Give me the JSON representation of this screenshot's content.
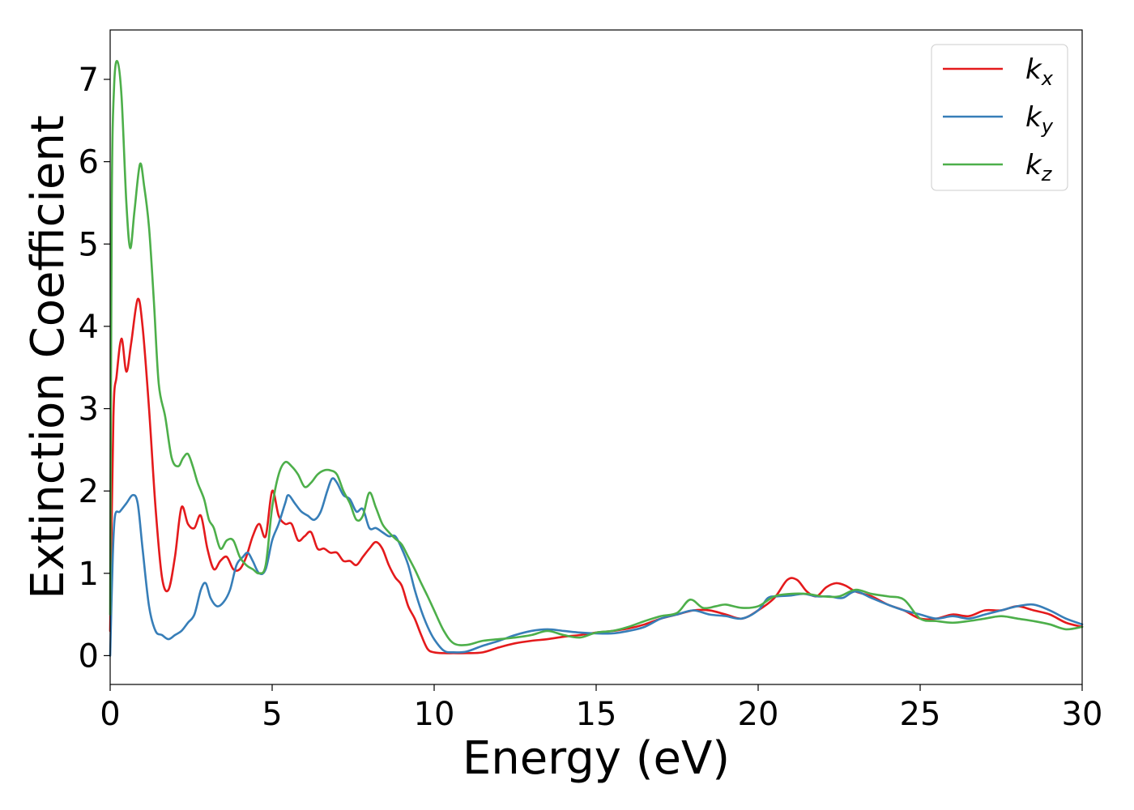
{
  "chart_data": {
    "type": "line",
    "title": "",
    "xlabel": "Energy (eV)",
    "ylabel": "Extinction Coefficient",
    "xlim": [
      0,
      30
    ],
    "ylim": [
      -0.35,
      7.6
    ],
    "xticks": [
      0,
      5,
      10,
      15,
      20,
      25,
      30
    ],
    "yticks": [
      0,
      1,
      2,
      3,
      4,
      5,
      6,
      7
    ],
    "grid": false,
    "legend_position": "top-right",
    "series": [
      {
        "name": "k_x",
        "legend_base": "k",
        "legend_sub": "x",
        "color": "#e41a1c",
        "x": [
          0,
          0.1,
          0.2,
          0.35,
          0.5,
          0.65,
          0.85,
          1.0,
          1.2,
          1.4,
          1.6,
          1.8,
          2.0,
          2.2,
          2.4,
          2.6,
          2.8,
          3.0,
          3.2,
          3.4,
          3.6,
          3.8,
          4.0,
          4.2,
          4.4,
          4.6,
          4.8,
          5.0,
          5.2,
          5.4,
          5.6,
          5.8,
          6.0,
          6.2,
          6.4,
          6.6,
          6.8,
          7.0,
          7.2,
          7.4,
          7.6,
          7.8,
          8.0,
          8.2,
          8.4,
          8.6,
          8.8,
          9.0,
          9.2,
          9.4,
          9.6,
          9.8,
          10.0,
          10.3,
          10.6,
          11.0,
          11.5,
          12.0,
          12.5,
          13.0,
          13.5,
          14.0,
          14.5,
          15.0,
          15.5,
          16.0,
          16.5,
          17.0,
          17.5,
          18.0,
          18.5,
          19.0,
          19.5,
          20.0,
          20.5,
          20.9,
          21.2,
          21.5,
          21.8,
          22.1,
          22.4,
          22.7,
          23.0,
          23.5,
          24.0,
          24.5,
          25.0,
          25.5,
          26.0,
          26.5,
          27.0,
          27.5,
          28.0,
          28.5,
          29.0,
          29.5,
          30.0
        ],
        "values": [
          0.3,
          2.9,
          3.4,
          3.85,
          3.45,
          3.8,
          4.33,
          4.0,
          3.0,
          1.8,
          0.95,
          0.8,
          1.2,
          1.8,
          1.6,
          1.55,
          1.7,
          1.3,
          1.05,
          1.15,
          1.2,
          1.05,
          1.05,
          1.2,
          1.45,
          1.6,
          1.45,
          2.0,
          1.7,
          1.6,
          1.6,
          1.4,
          1.45,
          1.5,
          1.3,
          1.3,
          1.25,
          1.25,
          1.15,
          1.15,
          1.1,
          1.2,
          1.3,
          1.38,
          1.3,
          1.1,
          0.95,
          0.85,
          0.6,
          0.45,
          0.25,
          0.08,
          0.04,
          0.03,
          0.03,
          0.03,
          0.04,
          0.1,
          0.15,
          0.18,
          0.2,
          0.23,
          0.25,
          0.28,
          0.3,
          0.33,
          0.38,
          0.45,
          0.5,
          0.55,
          0.55,
          0.5,
          0.45,
          0.55,
          0.7,
          0.92,
          0.92,
          0.78,
          0.72,
          0.83,
          0.88,
          0.85,
          0.78,
          0.72,
          0.62,
          0.55,
          0.45,
          0.45,
          0.5,
          0.48,
          0.55,
          0.55,
          0.6,
          0.55,
          0.5,
          0.4,
          0.35
        ]
      },
      {
        "name": "k_y",
        "legend_base": "k",
        "legend_sub": "y",
        "color": "#377eb8",
        "x": [
          0,
          0.08,
          0.15,
          0.3,
          0.5,
          0.7,
          0.85,
          1.0,
          1.2,
          1.4,
          1.6,
          1.8,
          2.0,
          2.2,
          2.4,
          2.6,
          2.8,
          2.95,
          3.1,
          3.3,
          3.5,
          3.7,
          3.9,
          4.1,
          4.25,
          4.4,
          4.6,
          4.8,
          5.0,
          5.2,
          5.4,
          5.5,
          5.7,
          5.9,
          6.1,
          6.3,
          6.5,
          6.7,
          6.85,
          7.0,
          7.2,
          7.4,
          7.6,
          7.8,
          8.0,
          8.2,
          8.4,
          8.6,
          8.8,
          9.0,
          9.2,
          9.4,
          9.6,
          9.8,
          10.0,
          10.3,
          10.6,
          11.0,
          11.5,
          12.0,
          12.5,
          13.0,
          13.5,
          14.0,
          14.5,
          15.0,
          15.5,
          16.0,
          16.5,
          17.0,
          17.5,
          18.0,
          18.5,
          19.0,
          19.5,
          20.0,
          20.3,
          20.6,
          21.0,
          21.4,
          21.8,
          22.2,
          22.6,
          23.0,
          23.5,
          24.0,
          24.5,
          25.0,
          25.5,
          26.0,
          26.5,
          27.0,
          27.5,
          28.0,
          28.5,
          29.0,
          29.5,
          30.0
        ],
        "values": [
          0.0,
          1.2,
          1.7,
          1.75,
          1.85,
          1.95,
          1.85,
          1.3,
          0.6,
          0.3,
          0.25,
          0.2,
          0.25,
          0.3,
          0.4,
          0.5,
          0.8,
          0.88,
          0.7,
          0.6,
          0.65,
          0.8,
          1.1,
          1.2,
          1.25,
          1.15,
          1.0,
          1.05,
          1.4,
          1.6,
          1.85,
          1.95,
          1.85,
          1.75,
          1.7,
          1.65,
          1.75,
          2.0,
          2.15,
          2.1,
          1.95,
          1.9,
          1.75,
          1.78,
          1.55,
          1.55,
          1.5,
          1.45,
          1.45,
          1.3,
          1.1,
          0.8,
          0.55,
          0.35,
          0.2,
          0.06,
          0.04,
          0.05,
          0.12,
          0.18,
          0.25,
          0.3,
          0.32,
          0.3,
          0.28,
          0.27,
          0.27,
          0.3,
          0.35,
          0.45,
          0.5,
          0.55,
          0.5,
          0.48,
          0.45,
          0.55,
          0.7,
          0.72,
          0.73,
          0.75,
          0.72,
          0.72,
          0.7,
          0.78,
          0.7,
          0.62,
          0.55,
          0.5,
          0.45,
          0.48,
          0.45,
          0.5,
          0.55,
          0.6,
          0.62,
          0.55,
          0.45,
          0.38
        ]
      },
      {
        "name": "k_z",
        "legend_base": "k",
        "legend_sub": "z",
        "color": "#4daf4a",
        "x": [
          0,
          0.05,
          0.12,
          0.22,
          0.35,
          0.5,
          0.62,
          0.75,
          0.92,
          1.05,
          1.2,
          1.35,
          1.5,
          1.7,
          1.9,
          2.1,
          2.25,
          2.4,
          2.55,
          2.7,
          2.9,
          3.05,
          3.2,
          3.4,
          3.6,
          3.8,
          4.0,
          4.2,
          4.4,
          4.6,
          4.8,
          5.0,
          5.2,
          5.4,
          5.6,
          5.8,
          6.0,
          6.2,
          6.4,
          6.6,
          6.8,
          7.0,
          7.2,
          7.4,
          7.6,
          7.8,
          8.0,
          8.2,
          8.4,
          8.6,
          8.8,
          9.0,
          9.2,
          9.4,
          9.6,
          9.8,
          10.0,
          10.3,
          10.6,
          11.0,
          11.5,
          12.0,
          12.5,
          13.0,
          13.5,
          14.0,
          14.5,
          15.0,
          15.5,
          16.0,
          16.5,
          17.0,
          17.5,
          17.9,
          18.3,
          18.7,
          19.0,
          19.5,
          20.0,
          20.5,
          21.0,
          21.5,
          22.0,
          22.5,
          23.0,
          23.5,
          24.0,
          24.5,
          25.0,
          25.5,
          26.0,
          26.5,
          27.0,
          27.5,
          28.0,
          28.5,
          29.0,
          29.5,
          30.0
        ],
        "values": [
          0.5,
          5.5,
          6.9,
          7.22,
          6.8,
          5.5,
          4.95,
          5.4,
          5.97,
          5.7,
          5.2,
          4.3,
          3.3,
          2.9,
          2.4,
          2.3,
          2.4,
          2.45,
          2.3,
          2.1,
          1.9,
          1.65,
          1.55,
          1.3,
          1.4,
          1.4,
          1.2,
          1.1,
          1.05,
          1.0,
          1.1,
          1.8,
          2.2,
          2.35,
          2.3,
          2.2,
          2.05,
          2.1,
          2.2,
          2.25,
          2.25,
          2.2,
          2.0,
          1.85,
          1.65,
          1.7,
          1.98,
          1.8,
          1.6,
          1.5,
          1.42,
          1.35,
          1.2,
          1.05,
          0.88,
          0.72,
          0.55,
          0.3,
          0.15,
          0.13,
          0.18,
          0.2,
          0.22,
          0.25,
          0.3,
          0.25,
          0.22,
          0.28,
          0.3,
          0.35,
          0.42,
          0.48,
          0.52,
          0.68,
          0.58,
          0.6,
          0.62,
          0.58,
          0.6,
          0.72,
          0.75,
          0.75,
          0.72,
          0.72,
          0.8,
          0.75,
          0.72,
          0.68,
          0.45,
          0.42,
          0.4,
          0.42,
          0.45,
          0.48,
          0.45,
          0.42,
          0.38,
          0.32,
          0.35
        ]
      }
    ]
  }
}
